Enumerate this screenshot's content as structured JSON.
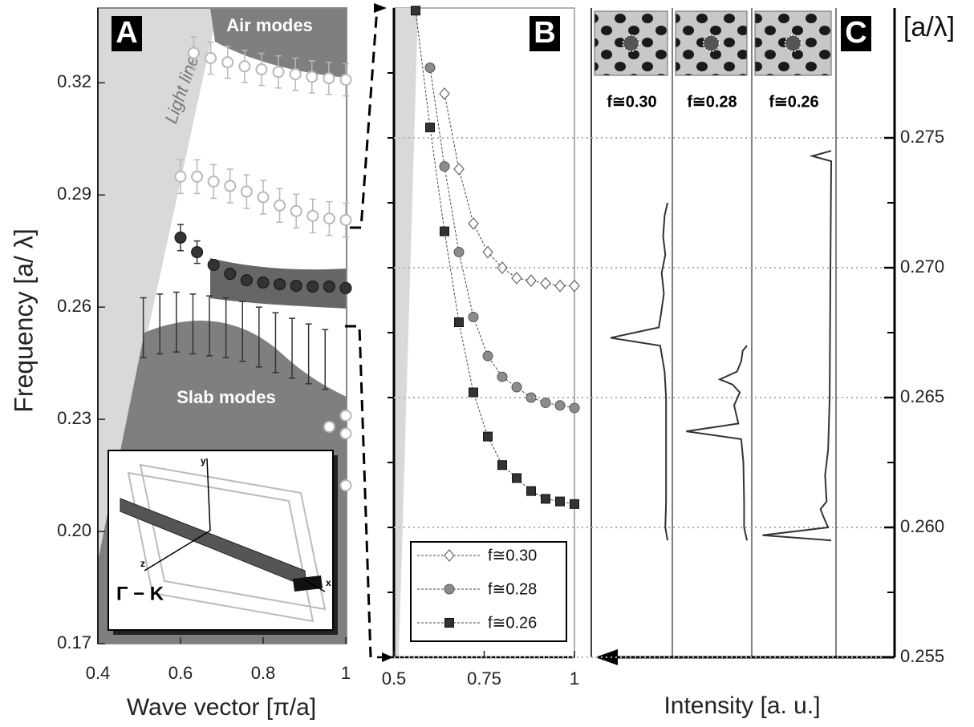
{
  "chart_data": [
    {
      "type": "scatter",
      "panel": "A",
      "xlabel": "Wave vector [π/a]",
      "ylabel": "Frequency [a/ λ]",
      "air_label": "Air modes",
      "light_line_label": "Light line",
      "slab_label": "Slab modes",
      "inset_label": "Γ − K",
      "inset_axes": [
        "y",
        "x",
        "z"
      ],
      "xlim": [
        0.4,
        1
      ],
      "ylim": [
        0.17,
        0.34
      ],
      "xticks": [
        0.4,
        0.6,
        0.8,
        1
      ],
      "yticks": [
        0.17,
        {
          "value": 0.2,
          "label": "0.20"
        },
        0.23,
        0.26,
        0.29,
        0.32
      ],
      "series": [
        {
          "color": "#b8b8b8",
          "marker": "open-circle",
          "x": [
            0.632,
            0.673,
            0.714,
            0.755,
            0.796,
            0.837,
            0.878,
            0.918,
            0.959,
            1.0
          ],
          "values": [
            0.328,
            0.3266,
            0.3255,
            0.3244,
            0.3236,
            0.3229,
            0.3223,
            0.3216,
            0.3212,
            0.3208
          ],
          "errors": [
            0.0043,
            0.0043,
            0.0043,
            0.0043,
            0.0043,
            0.0043,
            0.0043,
            0.0043,
            0.0043,
            0.0043
          ]
        },
        {
          "color": "#b8b8b8",
          "marker": "open-circle",
          "x": [
            0.6,
            0.64,
            0.68,
            0.72,
            0.76,
            0.8,
            0.84,
            0.88,
            0.92,
            0.96,
            1.0
          ],
          "values": [
            0.2949,
            0.2949,
            0.2936,
            0.2924,
            0.2909,
            0.2894,
            0.2872,
            0.2857,
            0.2844,
            0.2837,
            0.2833
          ],
          "errors": [
            0.0045,
            0.0045,
            0.0045,
            0.0045,
            0.0045,
            0.0045,
            0.0045,
            0.0045,
            0.0045,
            0.0045,
            0.0045
          ]
        },
        {
          "color": "#333333",
          "marker": "filled-circle",
          "x": [
            0.6,
            0.64,
            0.68,
            0.72,
            0.76,
            0.8,
            0.84,
            0.88,
            0.92,
            0.96,
            1.0
          ],
          "values": [
            0.2786,
            0.2747,
            0.2713,
            0.2689,
            0.2672,
            0.2666,
            0.2661,
            0.2657,
            0.2655,
            0.2655,
            0.2651
          ],
          "errors": [
            0.0035,
            0.003,
            null,
            null,
            null,
            null,
            null,
            null,
            null,
            null,
            null
          ]
        },
        {
          "color": "#333333",
          "marker": "none",
          "x": [
            0.51,
            0.55,
            0.59,
            0.63,
            0.67,
            0.71,
            0.75,
            0.79,
            0.83,
            0.87,
            0.91,
            0.95
          ],
          "values": [
            0.2545,
            0.2555,
            0.256,
            0.2555,
            0.255,
            0.2545,
            0.2535,
            0.252,
            0.2505,
            0.249,
            0.2475,
            0.246
          ],
          "errors": [
            0.008,
            0.008,
            0.008,
            0.008,
            0.008,
            0.008,
            0.008,
            0.008,
            0.008,
            0.008,
            0.008,
            0.008
          ]
        },
        {
          "color": "#b8b8b8",
          "marker": "open-circle",
          "x": [
            0.96,
            1.0,
            1.0,
            1.0
          ],
          "values": [
            0.228,
            0.231,
            0.2262,
            0.2123
          ],
          "errors": [
            null,
            null,
            null,
            null
          ]
        }
      ]
    },
    {
      "type": "line",
      "panel": "B",
      "xlim": [
        0.5,
        1
      ],
      "ylim": [
        0.255,
        0.28
      ],
      "xticks": [
        0.5,
        0.75,
        1
      ],
      "ytick_marks": [
        0.255,
        0.2575,
        0.26,
        0.2625,
        0.265,
        0.2675,
        0.27,
        0.2725,
        0.275,
        0.2775
      ],
      "series": [
        {
          "name": "f≅0.30",
          "color": "#ffffff",
          "marker": "diamond",
          "x": [
            0.64,
            0.68,
            0.72,
            0.76,
            0.8,
            0.84,
            0.88,
            0.92,
            0.96,
            1.0
          ],
          "values": [
            0.2767,
            0.2738,
            0.2717,
            0.2706,
            0.27,
            0.2696,
            0.2695,
            0.2694,
            0.2693,
            0.2693
          ]
        },
        {
          "name": "f≅0.28",
          "color": "#8c8c8c",
          "marker": "circle",
          "x": [
            0.6,
            0.64,
            0.68,
            0.72,
            0.76,
            0.8,
            0.84,
            0.88,
            0.92,
            0.96,
            1.0
          ],
          "values": [
            0.2777,
            0.2739,
            0.2706,
            0.2681,
            0.2666,
            0.2658,
            0.2654,
            0.265,
            0.2648,
            0.2647,
            0.2646
          ]
        },
        {
          "name": "f≅0.26",
          "color": "#333333",
          "marker": "square",
          "x": [
            0.56,
            0.6,
            0.64,
            0.68,
            0.72,
            0.76,
            0.8,
            0.84,
            0.88,
            0.92,
            0.96,
            1.0
          ],
          "values": [
            0.2799,
            0.2754,
            0.2714,
            0.2679,
            0.2652,
            0.2635,
            0.2624,
            0.2619,
            0.2614,
            0.2611,
            0.261,
            0.2609
          ]
        }
      ]
    },
    {
      "type": "spectrum",
      "panel": "C",
      "ylabel": "[a/λ]",
      "xlabel": "Intensity [a. u.]",
      "ylim": [
        0.255,
        0.28
      ],
      "yticks": [
        0.255,
        {
          "value": 0.26,
          "label": "0.260"
        },
        0.265,
        {
          "value": 0.27,
          "label": "0.270"
        },
        0.275
      ],
      "grid": true,
      "series": [
        {
          "name": "f≅0.30",
          "color": "#333333",
          "freq": [
            0.2725,
            0.272,
            0.2712,
            0.2705,
            0.2698,
            0.269,
            0.2682,
            0.2677,
            0.2673,
            0.267,
            0.266,
            0.265,
            0.263,
            0.261,
            0.26,
            0.2595
          ],
          "values": [
            0,
            4,
            6,
            3,
            8,
            5,
            9,
            12,
            78,
            10,
            4,
            2,
            2,
            2,
            3,
            0
          ]
        },
        {
          "name": "f≅0.28",
          "color": "#333333",
          "freq": [
            0.267,
            0.2668,
            0.2664,
            0.266,
            0.2657,
            0.2655,
            0.2652,
            0.2647,
            0.264,
            0.2637,
            0.2634,
            0.2625,
            0.261,
            0.26,
            0.2595
          ],
          "values": [
            0,
            6,
            8,
            14,
            38,
            20,
            10,
            18,
            12,
            85,
            8,
            5,
            4,
            4,
            0
          ]
        },
        {
          "name": "f≅0.26",
          "color": "#333333",
          "freq": [
            0.2745,
            0.2743,
            0.2741,
            0.27,
            0.265,
            0.263,
            0.262,
            0.261,
            0.2607,
            0.2604,
            0.26,
            0.2597,
            0.2595
          ],
          "values": [
            0,
            25,
            0,
            1,
            2,
            4,
            8,
            6,
            14,
            10,
            4,
            90,
            0
          ]
        }
      ]
    }
  ]
}
